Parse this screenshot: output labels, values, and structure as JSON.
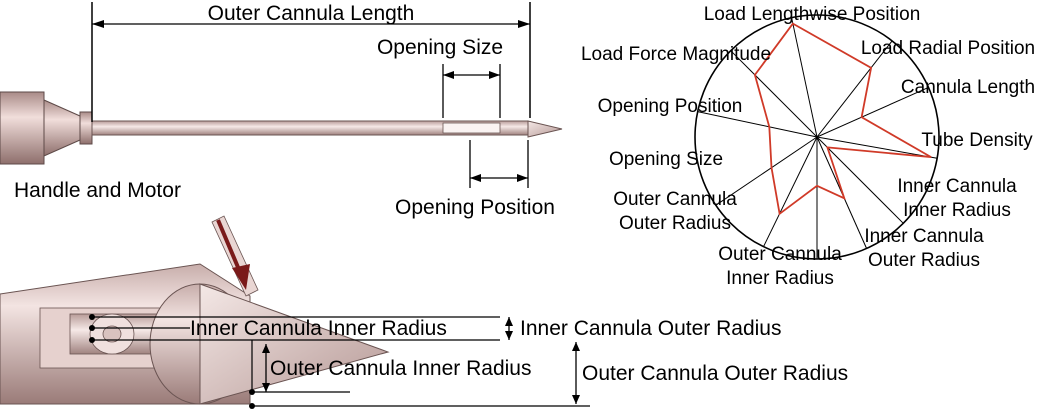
{
  "top_labels": {
    "outer_cannula_length": "Outer Cannula Length",
    "opening_size": "Opening Size",
    "handle_and_motor": "Handle and Motor",
    "opening_position": "Opening Position"
  },
  "radar": {
    "axes": [
      [
        "Load Lengthwise Position"
      ],
      [
        "Load Radial Position"
      ],
      [
        "Cannula Length"
      ],
      [
        "Tube Density"
      ],
      [
        "Inner Cannula",
        "Inner Radius"
      ],
      [
        "Inner Cannula",
        "Outer Radius"
      ],
      [
        "Outer Cannula",
        "Inner Radius"
      ],
      [
        "Outer Cannula",
        "Outer Radius"
      ],
      [
        "Opening Size"
      ],
      [
        "Opening Position"
      ],
      [
        "Load Force Magnitude"
      ]
    ],
    "values": [
      0.95,
      0.72,
      0.4,
      0.95,
      0.12,
      0.55,
      0.4,
      0.7,
      0.45,
      0.4,
      0.72
    ],
    "series_color": "#d03a28"
  },
  "bottom_labels": {
    "inner_cannula_inner_radius": "Inner Cannula Inner Radius",
    "inner_cannula_outer_radius": "Inner Cannula Outer Radius",
    "outer_cannula_inner_radius": "Outer Cannula Inner Radius",
    "outer_cannula_outer_radius": "Outer Cannula Outer Radius"
  },
  "colors": {
    "handle": "#e2c7c4",
    "handle_dark": "#9c7a77",
    "cannula": "#ecd9d6",
    "arrow": "#7a1a1a"
  }
}
